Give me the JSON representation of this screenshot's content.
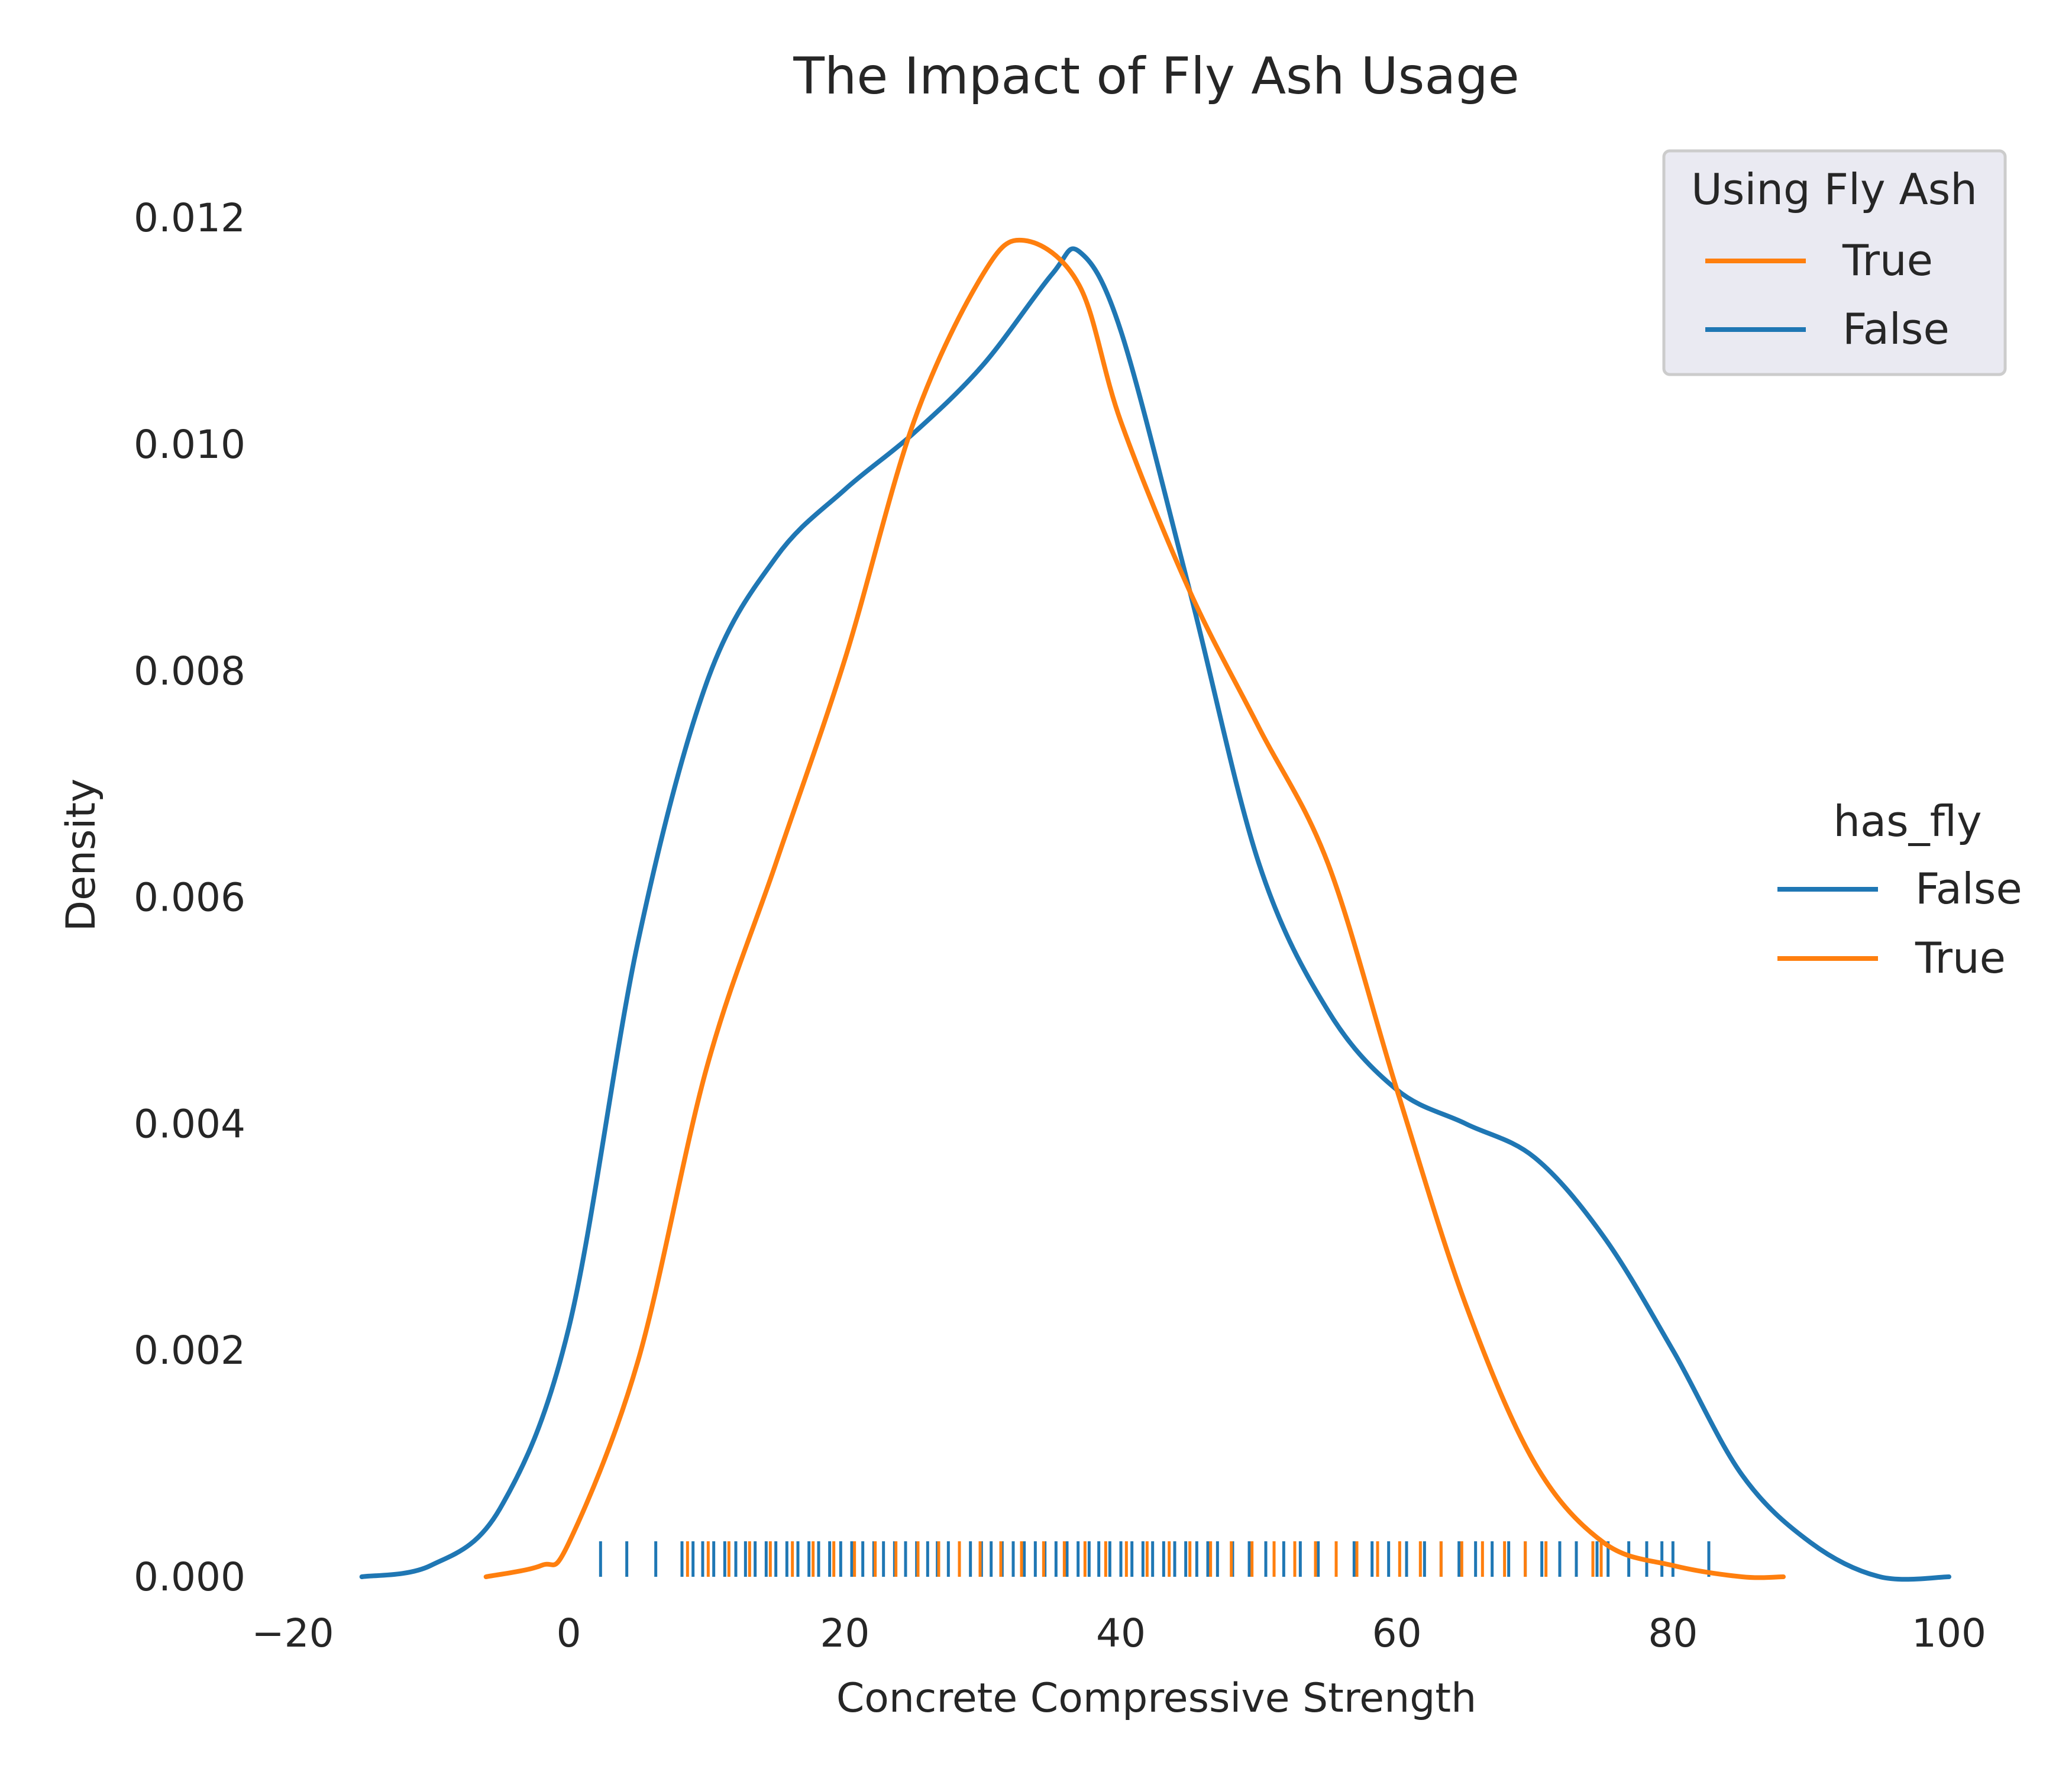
{
  "chart_data": {
    "type": "line",
    "title": "The Impact of Fly Ash Usage",
    "xlabel": "Concrete Compressive Strength",
    "ylabel": "Density",
    "xlim": [
      -20,
      100
    ],
    "ylim": [
      0,
      0.0128
    ],
    "xticks": [
      -20,
      0,
      20,
      40,
      60,
      80,
      100
    ],
    "xtick_labels": [
      "−20",
      "0",
      "20",
      "40",
      "60",
      "80",
      "100"
    ],
    "yticks": [
      0,
      0.002,
      0.004,
      0.006,
      0.008,
      0.01,
      0.012
    ],
    "ytick_labels": [
      "0.000",
      "0.002",
      "0.004",
      "0.006",
      "0.008",
      "0.010",
      "0.012"
    ],
    "grid": false,
    "colors": {
      "false": "#1f77b4",
      "true": "#ff7f0e",
      "legend_bg": "#eaeaf2",
      "legend_edge": "#cccccc"
    },
    "series": [
      {
        "name": "False",
        "color": "#1f77b4",
        "x": [
          -15,
          -10,
          -5,
          0,
          5,
          10,
          15,
          20,
          25,
          30,
          35,
          37,
          40,
          45,
          50,
          55,
          60,
          65,
          70,
          75,
          80,
          85,
          90,
          95,
          100
        ],
        "y": [
          0.0,
          0.0001,
          0.0006,
          0.0022,
          0.0056,
          0.0079,
          0.009,
          0.0096,
          0.0101,
          0.0107,
          0.0115,
          0.0117,
          0.011,
          0.0087,
          0.0063,
          0.005,
          0.0043,
          0.004,
          0.0037,
          0.003,
          0.002,
          0.0009,
          0.0003,
          0.0,
          0.0
        ]
      },
      {
        "name": "True",
        "color": "#ff7f0e",
        "x": [
          -6,
          -2,
          0,
          5,
          10,
          15,
          20,
          25,
          30,
          33,
          37,
          40,
          45,
          50,
          55,
          60,
          65,
          70,
          75,
          80,
          85,
          88
        ],
        "y": [
          0.0,
          0.0001,
          0.0003,
          0.0019,
          0.0045,
          0.0063,
          0.0081,
          0.0102,
          0.0115,
          0.0118,
          0.0114,
          0.0102,
          0.0087,
          0.0075,
          0.0063,
          0.0043,
          0.0024,
          0.001,
          0.0003,
          0.0001,
          0.0,
          0.0
        ]
      }
    ],
    "rug": {
      "False": [
        2.3,
        4.2,
        6.3,
        8.2,
        9.0,
        9.7,
        10.5,
        11.3,
        12.1,
        12.8,
        13.5,
        14.3,
        15.0,
        15.8,
        16.6,
        17.4,
        18.1,
        18.9,
        19.7,
        20.5,
        21.3,
        22.1,
        22.8,
        23.6,
        24.4,
        25.2,
        26.0,
        26.7,
        27.5,
        28.3,
        29.1,
        29.9,
        30.6,
        31.4,
        32.2,
        33.0,
        33.8,
        34.5,
        35.3,
        36.1,
        36.9,
        37.7,
        38.4,
        39.2,
        40.0,
        40.8,
        41.6,
        42.3,
        43.1,
        43.9,
        44.7,
        45.5,
        46.3,
        47.0,
        48.1,
        49.3,
        50.5,
        51.8,
        53.0,
        54.3,
        55.6,
        56.9,
        58.2,
        59.4,
        60.7,
        62.0,
        63.2,
        64.5,
        65.7,
        66.9,
        68.1,
        69.3,
        70.5,
        71.8,
        73.0,
        74.5,
        75.3,
        76.8,
        78.1,
        79.2,
        80.0,
        82.6
      ],
      "True": [
        8.6,
        10.1,
        11.6,
        13.1,
        14.6,
        16.2,
        17.7,
        19.2,
        20.7,
        22.2,
        23.7,
        25.3,
        26.8,
        28.3,
        29.8,
        31.3,
        32.8,
        34.4,
        35.9,
        37.4,
        38.9,
        40.4,
        41.9,
        43.5,
        45.0,
        46.5,
        48.0,
        49.5,
        51.1,
        52.6,
        54.1,
        55.6,
        57.1,
        58.6,
        60.2,
        61.7,
        63.2,
        64.7,
        66.2,
        67.8,
        69.3,
        70.8,
        74.2,
        74.8
      ]
    },
    "legends": [
      {
        "title": "Using Fly Ash",
        "entries": [
          {
            "label": "True",
            "color": "#ff7f0e"
          },
          {
            "label": "False",
            "color": "#1f77b4"
          }
        ]
      },
      {
        "title": "has_fly",
        "entries": [
          {
            "label": "False",
            "color": "#1f77b4"
          },
          {
            "label": "True",
            "color": "#ff7f0e"
          }
        ]
      }
    ]
  }
}
